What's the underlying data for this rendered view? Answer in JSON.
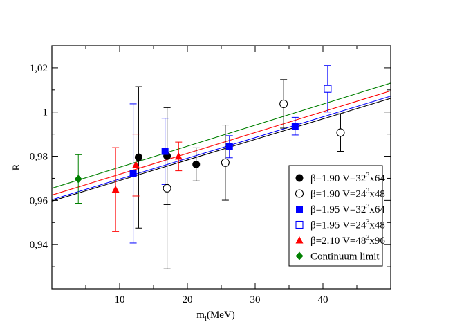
{
  "chart_data": {
    "type": "scatter",
    "title": "",
    "xlabel": "m_l(MeV)",
    "xlabel_main": "m",
    "xlabel_sub": "l",
    "xlabel_unit": "(MeV)",
    "ylabel": "R",
    "xlim": [
      0,
      50
    ],
    "ylim": [
      0.92,
      1.03
    ],
    "xticks": [
      10,
      20,
      30,
      40
    ],
    "xtick_labels": [
      "10",
      "20",
      "30",
      "40"
    ],
    "yticks": [
      0.94,
      0.96,
      0.98,
      1.0,
      1.02
    ],
    "ytick_labels": [
      "0,94",
      "0,96",
      "0,98",
      "1",
      "1,02"
    ],
    "legend_position": "bottom-right",
    "series": [
      {
        "name": "β=1.90 V=32³x64",
        "label_main": "β=1.90  V=32",
        "label_sup": "3",
        "label_tail": "x64",
        "marker": "circle-filled",
        "color": "#000000",
        "points": [
          {
            "x": 12.8,
            "y": 0.9795,
            "yerr": 0.032
          },
          {
            "x": 17.0,
            "y": 0.9801,
            "yerr": 0.022
          },
          {
            "x": 21.3,
            "y": 0.9763,
            "yerr": 0.0075
          }
        ]
      },
      {
        "name": "β=1.90 V=24³x48",
        "label_main": "β=1.90  V=24",
        "label_sup": "3",
        "label_tail": "x48",
        "marker": "circle-open",
        "color": "#000000",
        "points": [
          {
            "x": 17.0,
            "y": 0.9655,
            "yerr": 0.0365
          },
          {
            "x": 25.6,
            "y": 0.9771,
            "yerr": 0.017
          },
          {
            "x": 34.2,
            "y": 1.0037,
            "yerr": 0.011
          },
          {
            "x": 42.6,
            "y": 0.9907,
            "yerr": 0.0085
          }
        ]
      },
      {
        "name": "β=1.95 V=32³x64",
        "label_main": "β=1.95  V=32",
        "label_sup": "3",
        "label_tail": "x64",
        "marker": "square-filled",
        "color": "#0000ff",
        "points": [
          {
            "x": 12.0,
            "y": 0.9722,
            "yerr": 0.0315
          },
          {
            "x": 16.7,
            "y": 0.9822,
            "yerr": 0.015
          },
          {
            "x": 26.2,
            "y": 0.9843,
            "yerr": 0.005
          },
          {
            "x": 35.9,
            "y": 0.9936,
            "yerr": 0.004
          }
        ]
      },
      {
        "name": "β=1.95 V=24³x48",
        "label_main": "β=1.95  V=24",
        "label_sup": "3",
        "label_tail": "x48",
        "marker": "square-open",
        "color": "#0000ff",
        "points": [
          {
            "x": 40.7,
            "y": 1.0105,
            "yerr": 0.0105
          }
        ]
      },
      {
        "name": "β=2.10 V=48³x96",
        "label_main": "β=2.10  V=48",
        "label_sup": "3",
        "label_tail": "x96",
        "marker": "triangle-filled",
        "color": "#ff0000",
        "points": [
          {
            "x": 9.4,
            "y": 0.9649,
            "yerr": 0.019
          },
          {
            "x": 12.4,
            "y": 0.976,
            "yerr": 0.014
          },
          {
            "x": 18.7,
            "y": 0.9799,
            "yerr": 0.0065
          }
        ]
      },
      {
        "name": "Continuum limit",
        "label_main": "Continuum limit",
        "label_sup": "",
        "label_tail": "",
        "marker": "diamond-filled",
        "color": "#008000",
        "points": [
          {
            "x": 3.9,
            "y": 0.9697,
            "yerr": 0.011
          }
        ]
      }
    ],
    "fit_lines": [
      {
        "color": "#000000",
        "y_at_0": 0.9597,
        "y_at_50": 1.0062
      },
      {
        "color": "#0000ff",
        "y_at_0": 0.9603,
        "y_at_50": 1.0072
      },
      {
        "color": "#ff0000",
        "y_at_0": 0.9624,
        "y_at_50": 1.0096
      },
      {
        "color": "#008000",
        "y_at_0": 0.9655,
        "y_at_50": 1.0131
      }
    ]
  }
}
